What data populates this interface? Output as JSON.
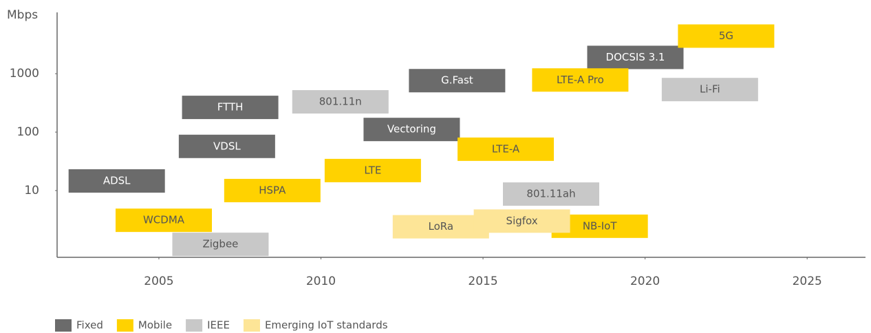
{
  "chart_data": {
    "type": "scatter",
    "y_label": "Mbps",
    "xlim": [
      2001.86,
      2026.8
    ],
    "xticks": [
      2005,
      2010,
      2015,
      2020,
      2025
    ],
    "ylim": [
      0.72,
      11200
    ],
    "yticks": [
      10,
      100,
      1000
    ],
    "log_y": true,
    "series": [
      {
        "name": "Fixed",
        "color": "#6b6b6b",
        "labels": [
          "ADSL",
          "VDSL",
          "FTTH",
          "Vectoring",
          "G.Fast",
          "DOCSIS 3.1"
        ],
        "x": [
          2003.7,
          2007.1,
          2007.2,
          2012.8,
          2014.2,
          2019.7
        ],
        "values": [
          14.6,
          57,
          265,
          111,
          760,
          1900
        ]
      },
      {
        "name": "Mobile",
        "color": "#ffd200",
        "labels": [
          "WCDMA",
          "HSPA",
          "LTE",
          "LTE-A",
          "LTE-A Pro",
          "5G",
          "NB-IoT"
        ],
        "x": [
          2005.15,
          2008.5,
          2011.6,
          2015.7,
          2018.0,
          2022.5,
          2018.6
        ],
        "values": [
          3.1,
          10,
          22,
          51,
          780,
          4400,
          2.45
        ]
      },
      {
        "name": "IEEE",
        "color": "#c8c8c8",
        "labels": [
          "Zigbee",
          "801.11n",
          "801.11ah",
          "Li-Fi"
        ],
        "x": [
          2006.9,
          2010.6,
          2017.1,
          2022.0
        ],
        "values": [
          1.2,
          330,
          8.7,
          535
        ]
      },
      {
        "name": "Emerging IoT standards",
        "color": "#fde597",
        "labels": [
          "LoRa",
          "Sigfox"
        ],
        "x": [
          2013.7,
          2016.2
        ],
        "values": [
          2.4,
          3.0
        ]
      }
    ],
    "legend": "bottom-left"
  }
}
